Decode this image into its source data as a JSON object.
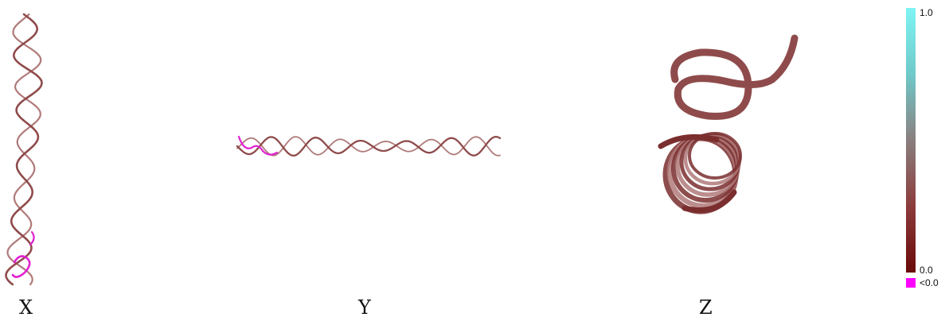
{
  "views": [
    {
      "label": "X"
    },
    {
      "label": "Y"
    },
    {
      "label": "Z"
    }
  ],
  "colorbar": {
    "max_label": "1.0",
    "min_label": "0.0",
    "below_label": "<0.0",
    "colors": {
      "top": "#7ff4f4",
      "mid": "#8a7f7f",
      "bottom": "#6a0a0a",
      "below": "#ff00ff"
    }
  },
  "ribbon_colors": {
    "main": "#8f4b4b",
    "dark": "#7a2e2e",
    "light": "#b07a7a",
    "negative": "#e020d0"
  }
}
